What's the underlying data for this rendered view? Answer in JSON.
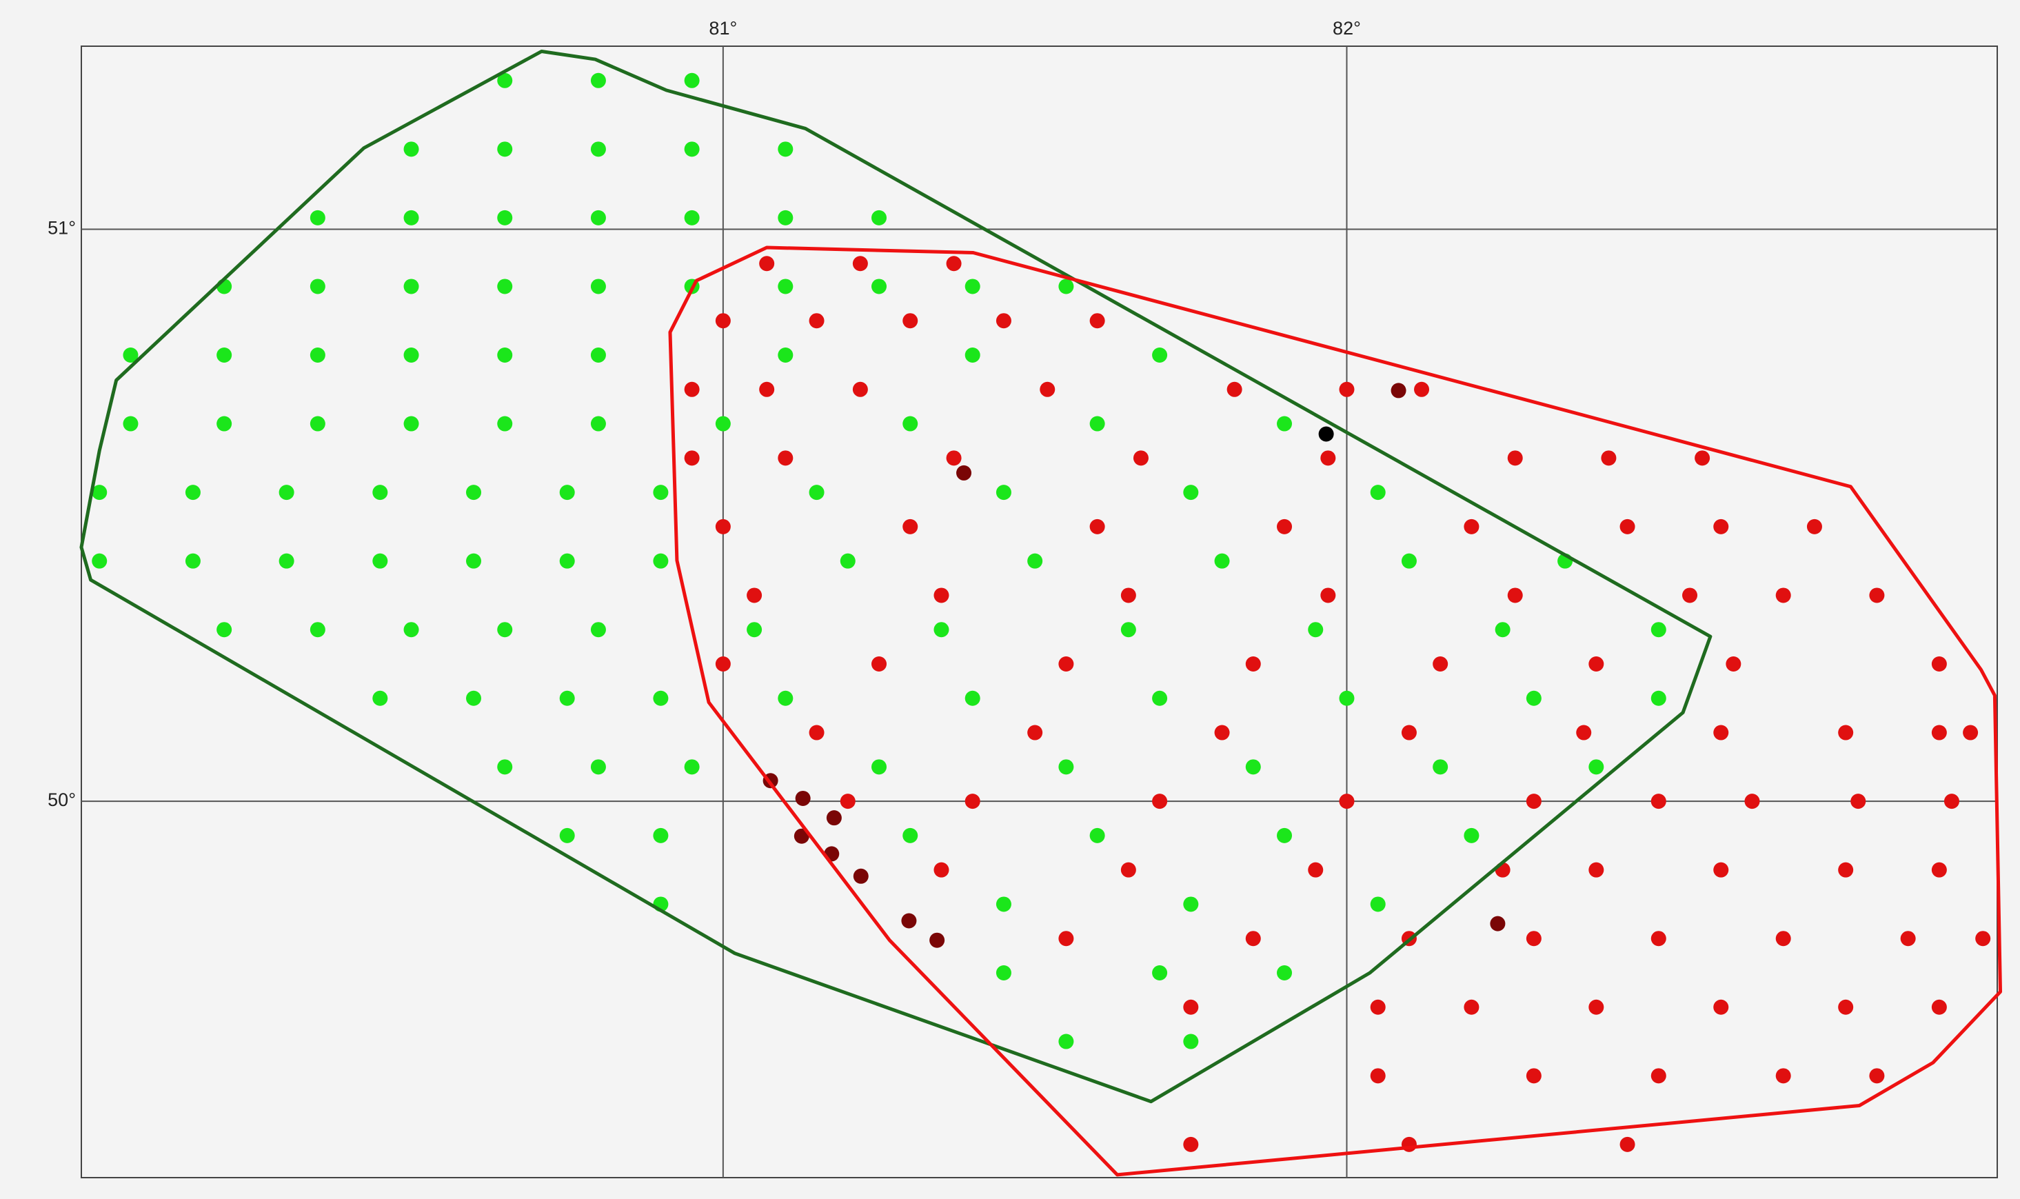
{
  "chart_data": {
    "type": "scatter",
    "xlim": [
      79.971,
      83.043
    ],
    "ylim": [
      49.342,
      51.32
    ],
    "xticks": [
      {
        "value": 81,
        "label": "81°"
      },
      {
        "value": 82,
        "label": "82°"
      }
    ],
    "yticks": [
      {
        "value": 50,
        "label": "50°"
      },
      {
        "value": 51,
        "label": "51°"
      }
    ],
    "grid": true,
    "series": [
      {
        "color": "#1be61b",
        "x": [
          80.65,
          80.8,
          80.95,
          80.5,
          80.65,
          80.8,
          80.95,
          81.1,
          80.35,
          80.5,
          80.65,
          80.8,
          80.95,
          81.1,
          81.25,
          80.2,
          80.35,
          80.5,
          80.65,
          80.8,
          80.95,
          81.1,
          81.25,
          81.4,
          81.55,
          80.05,
          80.2,
          80.35,
          80.5,
          80.65,
          80.8,
          81.1,
          81.4,
          81.7,
          80.05,
          80.2,
          80.35,
          80.5,
          80.65,
          80.8,
          81.0,
          81.3,
          81.6,
          81.9,
          80.0,
          80.15,
          80.3,
          80.45,
          80.6,
          80.75,
          80.9,
          81.15,
          81.45,
          81.75,
          82.05,
          80.0,
          80.15,
          80.3,
          80.45,
          80.6,
          80.75,
          80.9,
          81.2,
          81.5,
          81.8,
          82.1,
          82.35,
          80.2,
          80.35,
          80.5,
          80.65,
          80.8,
          81.05,
          81.35,
          81.65,
          81.95,
          82.25,
          82.5,
          80.45,
          80.6,
          80.75,
          80.9,
          81.1,
          81.4,
          81.7,
          82.0,
          82.3,
          82.5,
          80.65,
          80.8,
          80.95,
          81.25,
          81.55,
          81.85,
          82.15,
          82.4,
          80.75,
          80.9,
          81.3,
          81.6,
          81.9,
          82.2,
          80.9,
          81.45,
          81.75,
          82.05,
          81.45,
          81.7,
          81.9,
          81.55,
          81.75
        ],
        "y": [
          51.26,
          51.26,
          51.26,
          51.14,
          51.14,
          51.14,
          51.14,
          51.14,
          51.02,
          51.02,
          51.02,
          51.02,
          51.02,
          51.02,
          51.02,
          50.9,
          50.9,
          50.9,
          50.9,
          50.9,
          50.9,
          50.9,
          50.9,
          50.9,
          50.9,
          50.78,
          50.78,
          50.78,
          50.78,
          50.78,
          50.78,
          50.78,
          50.78,
          50.78,
          50.66,
          50.66,
          50.66,
          50.66,
          50.66,
          50.66,
          50.66,
          50.66,
          50.66,
          50.66,
          50.54,
          50.54,
          50.54,
          50.54,
          50.54,
          50.54,
          50.54,
          50.54,
          50.54,
          50.54,
          50.54,
          50.42,
          50.42,
          50.42,
          50.42,
          50.42,
          50.42,
          50.42,
          50.42,
          50.42,
          50.42,
          50.42,
          50.42,
          50.3,
          50.3,
          50.3,
          50.3,
          50.3,
          50.3,
          50.3,
          50.3,
          50.3,
          50.3,
          50.3,
          50.18,
          50.18,
          50.18,
          50.18,
          50.18,
          50.18,
          50.18,
          50.18,
          50.18,
          50.18,
          50.06,
          50.06,
          50.06,
          50.06,
          50.06,
          50.06,
          50.06,
          50.06,
          49.94,
          49.94,
          49.94,
          49.94,
          49.94,
          49.94,
          49.82,
          49.82,
          49.82,
          49.82,
          49.7,
          49.7,
          49.7,
          49.58,
          49.58
        ]
      },
      {
        "color": "#e01010",
        "x": [
          81.07,
          81.22,
          81.37,
          81.0,
          81.15,
          81.3,
          81.45,
          81.6,
          80.95,
          81.07,
          81.22,
          81.52,
          81.82,
          82.0,
          82.12,
          80.95,
          81.1,
          81.37,
          81.67,
          81.97,
          82.27,
          82.42,
          82.57,
          81.0,
          81.3,
          81.6,
          81.9,
          82.2,
          82.45,
          82.6,
          82.75,
          81.05,
          81.35,
          81.65,
          81.97,
          82.27,
          82.55,
          82.7,
          82.85,
          81.0,
          81.25,
          81.55,
          81.85,
          82.15,
          82.4,
          82.62,
          82.95,
          81.15,
          81.5,
          81.8,
          82.1,
          82.38,
          82.6,
          82.8,
          82.95,
          83.0,
          81.2,
          81.4,
          81.7,
          82.0,
          82.3,
          82.5,
          82.65,
          82.82,
          82.97,
          81.35,
          81.65,
          81.95,
          82.25,
          82.4,
          82.6,
          82.8,
          82.95,
          81.55,
          81.85,
          82.1,
          82.3,
          82.5,
          82.7,
          82.9,
          83.02,
          81.75,
          82.05,
          82.2,
          82.4,
          82.6,
          82.8,
          82.95,
          82.05,
          82.3,
          82.5,
          82.7,
          82.85,
          81.75,
          82.1,
          82.45
        ],
        "y": [
          50.94,
          50.94,
          50.94,
          50.84,
          50.84,
          50.84,
          50.84,
          50.84,
          50.72,
          50.72,
          50.72,
          50.72,
          50.72,
          50.72,
          50.72,
          50.6,
          50.6,
          50.6,
          50.6,
          50.6,
          50.6,
          50.6,
          50.6,
          50.48,
          50.48,
          50.48,
          50.48,
          50.48,
          50.48,
          50.48,
          50.48,
          50.36,
          50.36,
          50.36,
          50.36,
          50.36,
          50.36,
          50.36,
          50.36,
          50.24,
          50.24,
          50.24,
          50.24,
          50.24,
          50.24,
          50.24,
          50.24,
          50.12,
          50.12,
          50.12,
          50.12,
          50.12,
          50.12,
          50.12,
          50.12,
          50.12,
          50.0,
          50.0,
          50.0,
          50.0,
          50.0,
          50.0,
          50.0,
          50.0,
          50.0,
          49.88,
          49.88,
          49.88,
          49.88,
          49.88,
          49.88,
          49.88,
          49.88,
          49.76,
          49.76,
          49.76,
          49.76,
          49.76,
          49.76,
          49.76,
          49.76,
          49.64,
          49.64,
          49.64,
          49.64,
          49.64,
          49.64,
          49.64,
          49.52,
          49.52,
          49.52,
          49.52,
          49.52,
          49.4,
          49.4,
          49.4
        ]
      },
      {
        "color": "#7a0606",
        "x": [
          81.076,
          81.128,
          81.178,
          81.126,
          81.174,
          81.221,
          81.298,
          81.343,
          82.083,
          81.386,
          82.242
        ],
        "y": [
          50.036,
          50.005,
          49.971,
          49.939,
          49.908,
          49.869,
          49.791,
          49.757,
          50.718,
          50.574,
          49.786
        ]
      },
      {
        "color": "#000000",
        "x": [
          81.967
        ],
        "y": [
          50.642
        ]
      }
    ],
    "polygons": [
      {
        "color": "#1f6b1f",
        "x": [
          80.709,
          80.795,
          80.909,
          81.132,
          82.583,
          82.539,
          82.037,
          81.686,
          81.019,
          79.986,
          79.971,
          80.0,
          80.027,
          80.424
        ],
        "y": [
          51.311,
          51.297,
          51.243,
          51.176,
          50.288,
          50.155,
          49.7,
          49.475,
          49.734,
          50.387,
          50.444,
          50.613,
          50.736,
          51.142
        ]
      },
      {
        "color": "#ee1111",
        "x": [
          81.07,
          81.401,
          82.386,
          82.808,
          83.017,
          83.039,
          83.048,
          82.94,
          82.822,
          81.632,
          81.267,
          80.977,
          80.926,
          80.915,
          80.957
        ],
        "y": [
          50.968,
          50.959,
          50.673,
          50.55,
          50.23,
          50.185,
          49.667,
          49.543,
          49.468,
          49.347,
          49.757,
          50.173,
          50.421,
          50.82,
          50.91
        ]
      }
    ]
  }
}
